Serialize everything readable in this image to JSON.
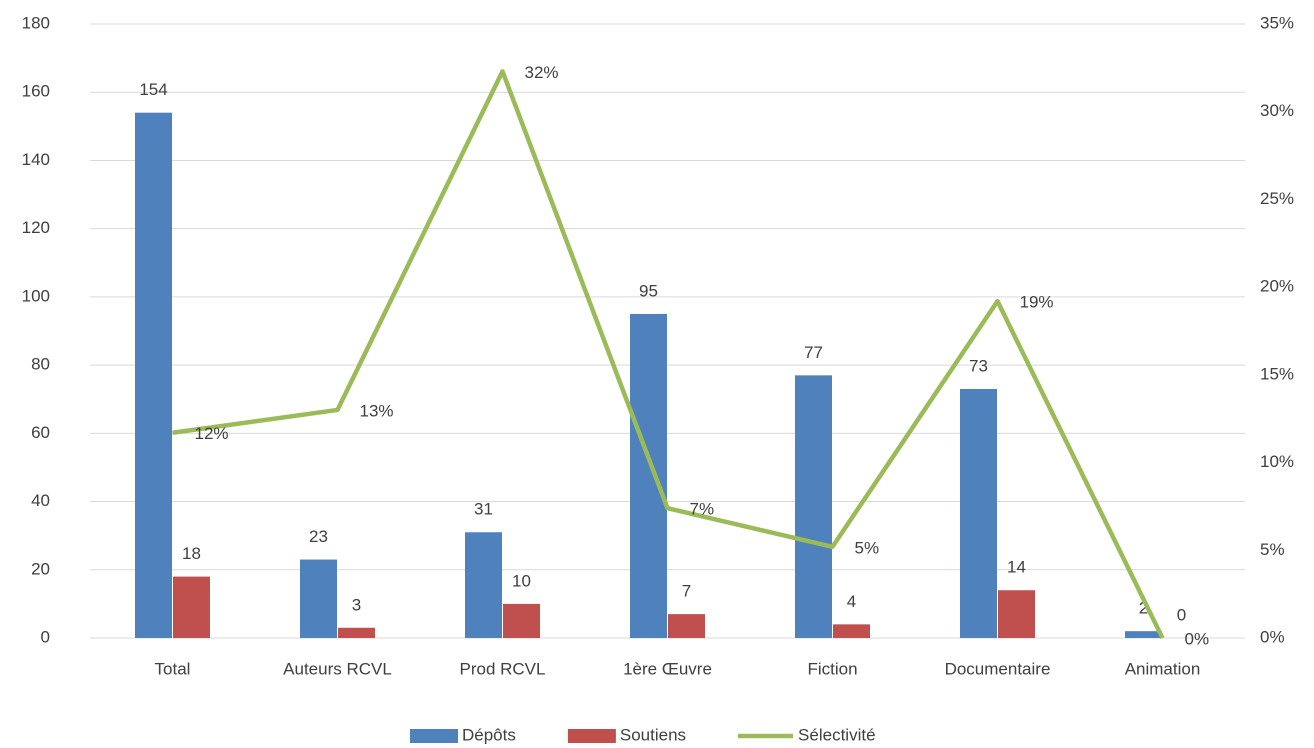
{
  "chart_data": {
    "type": "bar",
    "categories": [
      "Total",
      "Auteurs RCVL",
      "Prod RCVL",
      "1ère Œuvre",
      "Fiction",
      "Documentaire",
      "Animation"
    ],
    "series": [
      {
        "name": "Dépôts",
        "color": "#4f81bd",
        "type": "bar",
        "values": [
          154,
          23,
          31,
          95,
          77,
          73,
          2
        ]
      },
      {
        "name": "Soutiens",
        "color": "#c0504d",
        "type": "bar",
        "values": [
          18,
          3,
          10,
          7,
          4,
          14,
          0
        ]
      },
      {
        "name": "Sélectivité",
        "color": "#9bbb59",
        "type": "line",
        "axis": "y2",
        "values": [
          11.7,
          13,
          32.3,
          7.4,
          5.2,
          19.2,
          0
        ],
        "value_labels": [
          "12%",
          "13%",
          "32%",
          "7%",
          "5%",
          "19%",
          "0%"
        ]
      }
    ],
    "ylim": [
      0,
      180
    ],
    "yticks": [
      0,
      20,
      40,
      60,
      80,
      100,
      120,
      140,
      160,
      180
    ],
    "y2lim": [
      0,
      35
    ],
    "y2ticks": [
      {
        "value": 0,
        "label": "0%"
      },
      {
        "value": 5,
        "label": "5%"
      },
      {
        "value": 10,
        "label": "10%"
      },
      {
        "value": 15,
        "label": "15%"
      },
      {
        "value": 20,
        "label": "20%"
      },
      {
        "value": 25,
        "label": "25%"
      },
      {
        "value": 30,
        "label": "30%"
      },
      {
        "value": 35,
        "label": "35%"
      }
    ],
    "grid": true,
    "legend": "bottom"
  }
}
